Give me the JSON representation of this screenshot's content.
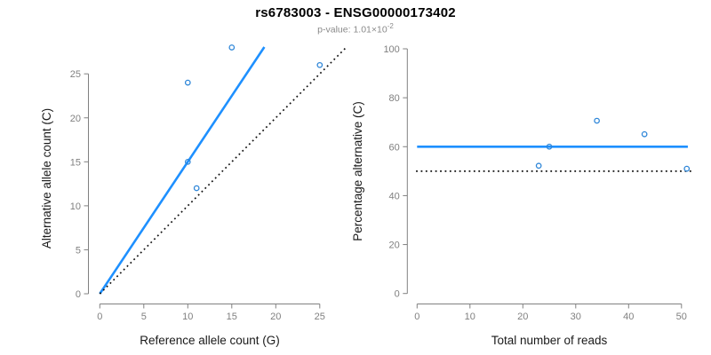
{
  "page": {
    "title": "rs6783003 - ENSG00000173402",
    "subtitle_prefix": "p-value: ",
    "subtitle_value": "1.01×10",
    "subtitle_exponent": "-2"
  },
  "colors": {
    "accent_blue": "#1E90FF",
    "point_blue": "#2E86D8",
    "axis_gray": "#808080",
    "tick_label_gray": "#808080",
    "label_black": "#1a1a1a",
    "dotted_black": "#111111",
    "subtitle_gray": "#8a8a8a"
  },
  "chart_data": [
    {
      "type": "scatter",
      "title": "",
      "xlabel": "Reference allele count (G)",
      "ylabel": "Alternative allele count (C)",
      "xticks": [
        0,
        5,
        10,
        15,
        20,
        25
      ],
      "yticks": [
        0,
        5,
        10,
        15,
        20,
        25
      ],
      "xlim": [
        0,
        28
      ],
      "ylim": [
        0,
        28
      ],
      "grid": false,
      "legend": "none",
      "points": [
        {
          "x": 10,
          "y": 24
        },
        {
          "x": 15,
          "y": 28
        },
        {
          "x": 25,
          "y": 26
        },
        {
          "x": 10,
          "y": 15
        },
        {
          "x": 11,
          "y": 12
        }
      ],
      "lines": [
        {
          "name": "fit-line",
          "style": "solid",
          "color_key": "accent_blue",
          "x1": 0,
          "y1": 0,
          "x2": 18.7,
          "y2": 28.05
        },
        {
          "name": "identity-line",
          "style": "dotted",
          "color_key": "dotted_black",
          "x1": 0,
          "y1": 0,
          "x2": 28,
          "y2": 28
        }
      ]
    },
    {
      "type": "scatter",
      "title": "",
      "xlabel": "Total number of reads",
      "ylabel": "Percentage alternative (C)",
      "xticks": [
        0,
        10,
        20,
        30,
        40,
        50
      ],
      "yticks": [
        0,
        20,
        40,
        60,
        80,
        100
      ],
      "xlim": [
        0,
        52
      ],
      "ylim": [
        0,
        100
      ],
      "grid": false,
      "legend": "none",
      "points": [
        {
          "x": 23,
          "y": 52.2
        },
        {
          "x": 25,
          "y": 60
        },
        {
          "x": 34,
          "y": 70.6
        },
        {
          "x": 43,
          "y": 65.1
        },
        {
          "x": 51,
          "y": 51
        }
      ],
      "lines": [
        {
          "name": "fit-line",
          "style": "solid",
          "color_key": "accent_blue",
          "x1": 0,
          "y1": 60,
          "x2": 51.2,
          "y2": 60
        },
        {
          "name": "null-line",
          "style": "dotted",
          "color_key": "dotted_black",
          "x1": -0.2,
          "y1": 50,
          "x2": 52,
          "y2": 50
        }
      ]
    }
  ]
}
